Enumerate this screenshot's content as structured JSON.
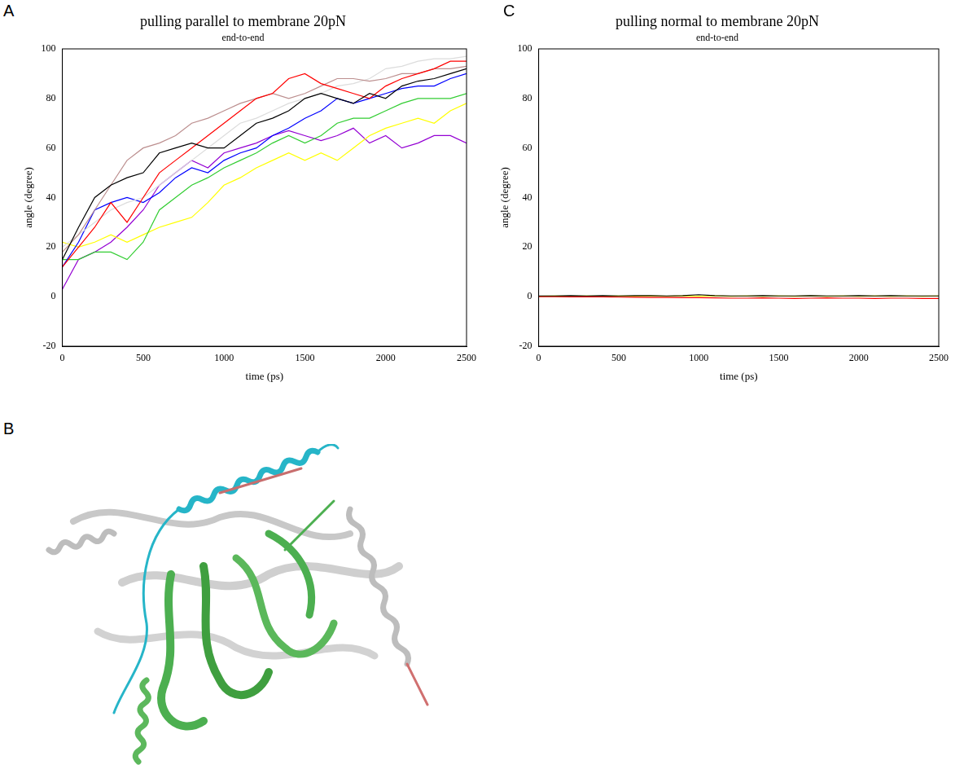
{
  "chart_data": [
    {
      "panel": "A",
      "type": "line",
      "title": "pulling parallel to membrane 20pN",
      "subtitle": "end-to-end",
      "x_label": "time (ps)",
      "y_label": "angle (degree)",
      "x": [
        0,
        100,
        200,
        300,
        400,
        500,
        600,
        700,
        800,
        900,
        1000,
        1100,
        1200,
        1300,
        1400,
        1500,
        1600,
        1700,
        1800,
        1900,
        2000,
        2100,
        2200,
        2300,
        2400,
        2500
      ],
      "series": [
        {
          "color": "#000000",
          "values": [
            15,
            28,
            40,
            45,
            48,
            50,
            58,
            60,
            62,
            60,
            60,
            65,
            70,
            72,
            75,
            80,
            82,
            80,
            78,
            82,
            80,
            85,
            87,
            88,
            90,
            92
          ]
        },
        {
          "color": "#ff0000",
          "values": [
            12,
            20,
            28,
            38,
            30,
            40,
            50,
            55,
            60,
            65,
            70,
            75,
            80,
            82,
            88,
            90,
            86,
            84,
            82,
            80,
            85,
            88,
            90,
            92,
            95,
            95
          ]
        },
        {
          "color": "#bc8f8f",
          "values": [
            18,
            25,
            35,
            45,
            55,
            60,
            62,
            65,
            70,
            72,
            75,
            78,
            80,
            82,
            80,
            82,
            85,
            88,
            88,
            87,
            88,
            90,
            90,
            92,
            92,
            93
          ]
        },
        {
          "color": "#dcdcdc",
          "values": [
            20,
            25,
            30,
            35,
            38,
            40,
            45,
            50,
            55,
            60,
            65,
            70,
            72,
            75,
            78,
            80,
            82,
            85,
            86,
            88,
            92,
            93,
            95,
            96,
            96,
            97
          ]
        },
        {
          "color": "#0000ff",
          "values": [
            12,
            22,
            35,
            38,
            40,
            38,
            42,
            48,
            52,
            50,
            55,
            58,
            60,
            65,
            68,
            72,
            75,
            80,
            78,
            80,
            82,
            84,
            85,
            85,
            88,
            90
          ]
        },
        {
          "color": "#32cd32",
          "values": [
            15,
            15,
            18,
            18,
            15,
            22,
            35,
            40,
            45,
            48,
            52,
            55,
            58,
            62,
            65,
            62,
            65,
            70,
            72,
            72,
            75,
            78,
            80,
            80,
            80,
            82
          ]
        },
        {
          "color": "#ffff00",
          "values": [
            22,
            20,
            22,
            25,
            22,
            25,
            28,
            30,
            32,
            38,
            45,
            48,
            52,
            55,
            58,
            55,
            58,
            55,
            60,
            65,
            68,
            70,
            72,
            70,
            75,
            78
          ]
        },
        {
          "color": "#9400d3",
          "values": [
            3,
            15,
            18,
            22,
            28,
            35,
            45,
            50,
            55,
            52,
            58,
            60,
            62,
            65,
            67,
            65,
            63,
            65,
            68,
            62,
            65,
            60,
            62,
            65,
            65,
            62
          ]
        }
      ],
      "xlim": [
        0,
        2500
      ],
      "xticks": [
        0,
        500,
        1000,
        1500,
        2000,
        2500
      ],
      "ylim": [
        -20,
        100
      ],
      "yticks": [
        -20,
        0,
        20,
        40,
        60,
        80,
        100
      ],
      "grid": false
    },
    {
      "panel": "C",
      "type": "line",
      "title": "pulling normal to membrane 20pN",
      "subtitle": "end-to-end",
      "x_label": "time (ps)",
      "y_label": "angle (degree)",
      "x": [
        0,
        100,
        200,
        300,
        400,
        500,
        600,
        700,
        800,
        900,
        1000,
        1100,
        1200,
        1300,
        1400,
        1500,
        1600,
        1700,
        1800,
        1900,
        2000,
        2100,
        2200,
        2300,
        2400,
        2500
      ],
      "series": [
        {
          "color": "#000000",
          "values": [
            0.3,
            0.3,
            0.4,
            0.3,
            0.4,
            0.3,
            0.4,
            0.4,
            0.3,
            0.4,
            0.8,
            0.4,
            0.3,
            0.3,
            0.4,
            0.3,
            0.3,
            0.4,
            0.3,
            0.3,
            0.4,
            0.3,
            0.4,
            0.3,
            0.3,
            0.3
          ]
        },
        {
          "color": "#ff0000",
          "values": [
            0,
            0,
            -0.1,
            0,
            -0.1,
            -0.2,
            -0.2,
            -0.3,
            -0.3,
            -0.4,
            -0.4,
            -0.5,
            -0.6,
            -0.6,
            -0.5,
            -0.6,
            -0.7,
            -0.6,
            -0.5,
            -0.6,
            -0.6,
            -0.7,
            -0.6,
            -0.6,
            -0.7,
            -0.7
          ]
        },
        {
          "color": "#ffff00",
          "values": [
            0.2,
            0.3,
            0.2,
            0.3,
            0.2,
            0.3,
            0.2,
            0.3,
            0.2,
            0.3,
            0.2,
            0.3,
            0.2,
            0.3,
            0.2,
            0.3,
            0.2,
            0.3,
            0.2,
            0.3,
            0.2,
            0.3,
            0.2,
            0.3,
            0.2,
            0.3
          ]
        }
      ],
      "xlim": [
        0,
        2500
      ],
      "xticks": [
        0,
        500,
        1000,
        1500,
        2000,
        2500
      ],
      "ylim": [
        -20,
        100
      ],
      "yticks": [
        -20,
        0,
        20,
        40,
        60,
        80,
        100
      ],
      "grid": false
    }
  ],
  "image_panel": {
    "panel": "B"
  }
}
